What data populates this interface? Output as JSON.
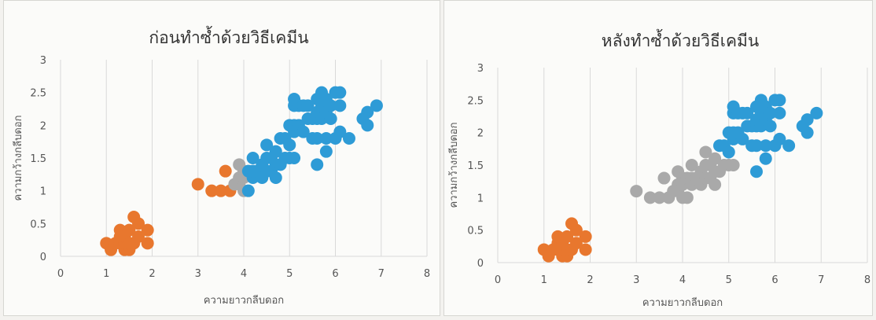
{
  "chart_data": [
    {
      "type": "scatter",
      "title": "ก่อนทำซ้ำด้วยวิธีเคมีน",
      "xlabel": "ความยาวกลีบดอก",
      "ylabel": "ความกว้างกลีบดอก",
      "xlim": [
        0,
        8
      ],
      "ylim": [
        0,
        3
      ],
      "xticks": [
        "0",
        "1",
        "2",
        "3",
        "4",
        "5",
        "6",
        "7",
        "8"
      ],
      "yticks": [
        "0",
        "0.5",
        "1",
        "1.5",
        "2",
        "2.5",
        "3"
      ],
      "grid": "vertical",
      "series": [
        {
          "color": "#e8772e",
          "points": [
            [
              1.0,
              0.2
            ],
            [
              1.1,
              0.1
            ],
            [
              1.2,
              0.2
            ],
            [
              1.3,
              0.2
            ],
            [
              1.3,
              0.3
            ],
            [
              1.3,
              0.4
            ],
            [
              1.4,
              0.1
            ],
            [
              1.4,
              0.2
            ],
            [
              1.4,
              0.3
            ],
            [
              1.5,
              0.1
            ],
            [
              1.5,
              0.2
            ],
            [
              1.5,
              0.4
            ],
            [
              1.6,
              0.2
            ],
            [
              1.6,
              0.6
            ],
            [
              1.7,
              0.3
            ],
            [
              1.7,
              0.5
            ],
            [
              1.9,
              0.2
            ],
            [
              1.9,
              0.4
            ],
            [
              3.0,
              1.1
            ],
            [
              3.3,
              1.0
            ],
            [
              3.5,
              1.0
            ],
            [
              3.6,
              1.3
            ],
            [
              3.7,
              1.0
            ]
          ]
        },
        {
          "color": "#a9a9a9",
          "points": [
            [
              3.8,
              1.1
            ],
            [
              3.9,
              1.1
            ],
            [
              3.9,
              1.2
            ],
            [
              3.9,
              1.4
            ],
            [
              4.0,
              1.0
            ],
            [
              4.0,
              1.2
            ],
            [
              4.0,
              1.3
            ]
          ]
        },
        {
          "color": "#2e9bd6",
          "points": [
            [
              4.1,
              1.0
            ],
            [
              4.1,
              1.3
            ],
            [
              4.2,
              1.2
            ],
            [
              4.2,
              1.3
            ],
            [
              4.2,
              1.5
            ],
            [
              4.3,
              1.3
            ],
            [
              4.4,
              1.2
            ],
            [
              4.4,
              1.4
            ],
            [
              4.5,
              1.3
            ],
            [
              4.5,
              1.5
            ],
            [
              4.5,
              1.7
            ],
            [
              4.6,
              1.3
            ],
            [
              4.6,
              1.5
            ],
            [
              4.7,
              1.2
            ],
            [
              4.7,
              1.4
            ],
            [
              4.7,
              1.6
            ],
            [
              4.8,
              1.4
            ],
            [
              4.8,
              1.8
            ],
            [
              4.9,
              1.5
            ],
            [
              4.9,
              1.8
            ],
            [
              5.0,
              1.5
            ],
            [
              5.0,
              1.7
            ],
            [
              5.0,
              2.0
            ],
            [
              5.1,
              1.5
            ],
            [
              5.1,
              1.9
            ],
            [
              5.1,
              2.0
            ],
            [
              5.1,
              2.3
            ],
            [
              5.1,
              2.4
            ],
            [
              5.2,
              2.0
            ],
            [
              5.2,
              2.3
            ],
            [
              5.3,
              1.9
            ],
            [
              5.3,
              2.3
            ],
            [
              5.4,
              2.1
            ],
            [
              5.4,
              2.3
            ],
            [
              5.5,
              1.8
            ],
            [
              5.5,
              2.1
            ],
            [
              5.6,
              1.4
            ],
            [
              5.6,
              1.8
            ],
            [
              5.6,
              2.1
            ],
            [
              5.6,
              2.2
            ],
            [
              5.6,
              2.4
            ],
            [
              5.7,
              2.1
            ],
            [
              5.7,
              2.3
            ],
            [
              5.7,
              2.5
            ],
            [
              5.8,
              1.6
            ],
            [
              5.8,
              1.8
            ],
            [
              5.8,
              2.2
            ],
            [
              5.8,
              2.4
            ],
            [
              5.9,
              2.1
            ],
            [
              5.9,
              2.3
            ],
            [
              6.0,
              1.8
            ],
            [
              6.0,
              2.5
            ],
            [
              6.1,
              1.9
            ],
            [
              6.1,
              2.3
            ],
            [
              6.1,
              2.5
            ],
            [
              6.3,
              1.8
            ],
            [
              6.6,
              2.1
            ],
            [
              6.7,
              2.0
            ],
            [
              6.7,
              2.2
            ],
            [
              6.9,
              2.3
            ]
          ]
        }
      ]
    },
    {
      "type": "scatter",
      "title": "หลังทำซ้ำด้วยวิธีเคมีน",
      "xlabel": "ความยาวกลีบดอก",
      "ylabel": "ความกว้างกลีบดอก",
      "xlim": [
        0,
        8
      ],
      "ylim": [
        0,
        3
      ],
      "xticks": [
        "0",
        "1",
        "2",
        "3",
        "4",
        "5",
        "6",
        "7",
        "8"
      ],
      "yticks": [
        "0",
        "0.5",
        "1",
        "1.5",
        "2",
        "2.5",
        "3"
      ],
      "grid": "vertical",
      "series": [
        {
          "color": "#e8772e",
          "points": [
            [
              1.0,
              0.2
            ],
            [
              1.1,
              0.1
            ],
            [
              1.2,
              0.2
            ],
            [
              1.3,
              0.2
            ],
            [
              1.3,
              0.3
            ],
            [
              1.3,
              0.4
            ],
            [
              1.4,
              0.1
            ],
            [
              1.4,
              0.2
            ],
            [
              1.4,
              0.3
            ],
            [
              1.5,
              0.1
            ],
            [
              1.5,
              0.2
            ],
            [
              1.5,
              0.4
            ],
            [
              1.6,
              0.2
            ],
            [
              1.6,
              0.6
            ],
            [
              1.7,
              0.3
            ],
            [
              1.7,
              0.5
            ],
            [
              1.9,
              0.2
            ],
            [
              1.9,
              0.4
            ]
          ]
        },
        {
          "color": "#a9a9a9",
          "points": [
            [
              3.0,
              1.1
            ],
            [
              3.3,
              1.0
            ],
            [
              3.5,
              1.0
            ],
            [
              3.6,
              1.3
            ],
            [
              3.7,
              1.0
            ],
            [
              3.8,
              1.1
            ],
            [
              3.9,
              1.1
            ],
            [
              3.9,
              1.2
            ],
            [
              3.9,
              1.4
            ],
            [
              4.0,
              1.0
            ],
            [
              4.0,
              1.2
            ],
            [
              4.0,
              1.3
            ],
            [
              4.1,
              1.0
            ],
            [
              4.1,
              1.3
            ],
            [
              4.2,
              1.2
            ],
            [
              4.2,
              1.3
            ],
            [
              4.2,
              1.5
            ],
            [
              4.3,
              1.3
            ],
            [
              4.4,
              1.2
            ],
            [
              4.4,
              1.4
            ],
            [
              4.5,
              1.3
            ],
            [
              4.5,
              1.5
            ],
            [
              4.5,
              1.7
            ],
            [
              4.6,
              1.3
            ],
            [
              4.6,
              1.5
            ],
            [
              4.7,
              1.2
            ],
            [
              4.7,
              1.4
            ],
            [
              4.7,
              1.6
            ],
            [
              4.8,
              1.4
            ],
            [
              4.9,
              1.5
            ],
            [
              5.0,
              1.5
            ],
            [
              5.1,
              1.5
            ]
          ]
        },
        {
          "color": "#2e9bd6",
          "points": [
            [
              4.8,
              1.8
            ],
            [
              4.9,
              1.8
            ],
            [
              5.0,
              1.7
            ],
            [
              5.0,
              2.0
            ],
            [
              5.1,
              1.9
            ],
            [
              5.1,
              2.0
            ],
            [
              5.1,
              2.3
            ],
            [
              5.1,
              2.4
            ],
            [
              5.2,
              2.0
            ],
            [
              5.2,
              2.3
            ],
            [
              5.3,
              1.9
            ],
            [
              5.3,
              2.3
            ],
            [
              5.4,
              2.1
            ],
            [
              5.4,
              2.3
            ],
            [
              5.5,
              1.8
            ],
            [
              5.5,
              2.1
            ],
            [
              5.6,
              1.4
            ],
            [
              5.6,
              1.8
            ],
            [
              5.6,
              2.1
            ],
            [
              5.6,
              2.2
            ],
            [
              5.6,
              2.4
            ],
            [
              5.7,
              2.1
            ],
            [
              5.7,
              2.3
            ],
            [
              5.7,
              2.5
            ],
            [
              5.8,
              1.6
            ],
            [
              5.8,
              1.8
            ],
            [
              5.8,
              2.2
            ],
            [
              5.8,
              2.4
            ],
            [
              5.9,
              2.1
            ],
            [
              5.9,
              2.3
            ],
            [
              6.0,
              1.8
            ],
            [
              6.0,
              2.5
            ],
            [
              6.1,
              1.9
            ],
            [
              6.1,
              2.3
            ],
            [
              6.1,
              2.5
            ],
            [
              6.3,
              1.8
            ],
            [
              6.6,
              2.1
            ],
            [
              6.7,
              2.0
            ],
            [
              6.7,
              2.2
            ],
            [
              6.9,
              2.3
            ]
          ]
        }
      ]
    }
  ]
}
